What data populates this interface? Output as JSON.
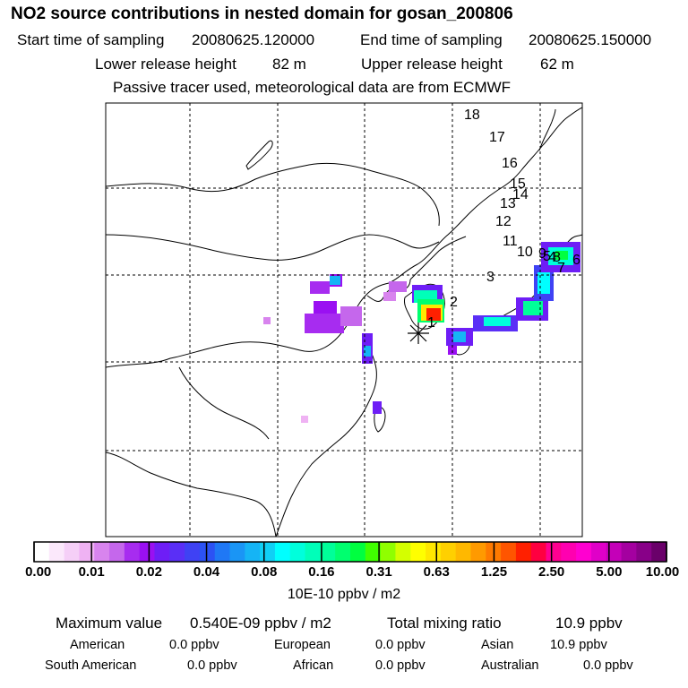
{
  "header": {
    "title": "NO2 source contributions in nested domain for gosan_200806",
    "start_label": "Start time of sampling",
    "start_value": "20080625.120000",
    "end_label": "End time of sampling",
    "end_value": "20080625.150000",
    "lower_label": "Lower release height",
    "lower_value": "82 m",
    "upper_label": "Upper release height",
    "upper_value": "62 m",
    "note": "Passive tracer used, meteorological data are from ECMWF"
  },
  "trajectory_labels": [
    "1",
    "2",
    "3",
    "4",
    "5",
    "6",
    "7",
    "8",
    "9",
    "10",
    "11",
    "12",
    "13",
    "14",
    "15",
    "16",
    "17",
    "18"
  ],
  "colorbar": {
    "ticks": [
      "0.00",
      "0.01",
      "0.02",
      "0.04",
      "0.08",
      "0.16",
      "0.31",
      "0.63",
      "1.25",
      "2.50",
      "5.00",
      "10.00"
    ],
    "colors": [
      "#ffffff",
      "#fbe8fb",
      "#f5cff7",
      "#efb2f3",
      "#d884ee",
      "#c567ec",
      "#a72cf0",
      "#9a10f2",
      "#6e1ef6",
      "#5a2ff6",
      "#3f42f4",
      "#2c52f4",
      "#1f78f5",
      "#1a95f5",
      "#15b4f5",
      "#10d0f5",
      "#00ffff",
      "#00ffdc",
      "#00ffb9",
      "#00ff99",
      "#00ff6f",
      "#00ff40",
      "#40ff00",
      "#90ff00",
      "#d4ff00",
      "#ffff00",
      "#ffe800",
      "#ffd000",
      "#ffb800",
      "#ff9a00",
      "#ff7a00",
      "#ff5500",
      "#ff2000",
      "#ff0040",
      "#ff0090",
      "#ff00b0",
      "#ff00d0",
      "#e000c8",
      "#c400b8",
      "#a400a0",
      "#880088",
      "#6a006a"
    ],
    "unit": "10E-10 ppbv / m2"
  },
  "summary": {
    "max_label": "Maximum value",
    "max_value": "0.540E-09 ppbv / m2",
    "total_label": "Total mixing ratio",
    "total_value": "10.9 ppbv"
  },
  "sources": [
    {
      "name": "American",
      "value": "0.0 ppbv"
    },
    {
      "name": "European",
      "value": "0.0 ppbv"
    },
    {
      "name": "Asian",
      "value": "10.9 ppbv"
    },
    {
      "name": "South American",
      "value": "0.0 ppbv"
    },
    {
      "name": "African",
      "value": "0.0 ppbv"
    },
    {
      "name": "Australian",
      "value": "0.0 ppbv"
    }
  ]
}
